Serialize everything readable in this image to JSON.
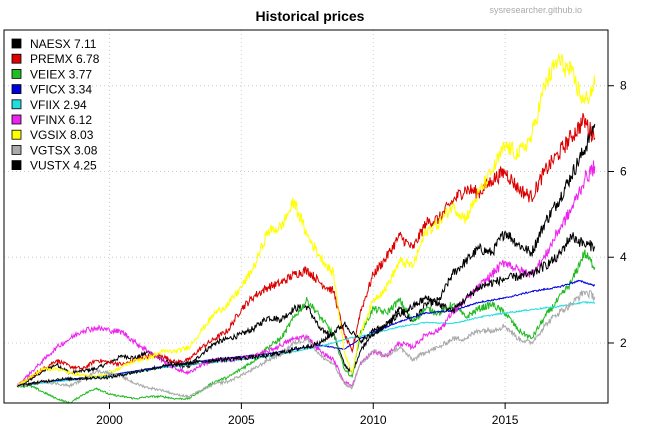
{
  "chart_data": {
    "type": "line",
    "title": "Historical prices",
    "watermark": "sysresearcher.github.io",
    "xlabel": "",
    "ylabel": "",
    "xlim": [
      1996.0,
      2018.9
    ],
    "ylim": [
      0.6,
      9.3
    ],
    "x_ticks": [
      2000,
      2005,
      2010,
      2015
    ],
    "y_ticks": [
      2,
      4,
      6,
      8
    ],
    "y_axis_side": "right",
    "grid": true,
    "legend_position": "top-left",
    "series": [
      {
        "name": "NAESX 7.11",
        "color": "#000000",
        "x": [
          1996.5,
          1997,
          1997.5,
          1998,
          1998.5,
          1999,
          1999.5,
          2000,
          2000.5,
          2001,
          2001.5,
          2002,
          2002.5,
          2003,
          2003.5,
          2004,
          2004.5,
          2005,
          2005.5,
          2006,
          2006.5,
          2007,
          2007.5,
          2008,
          2008.5,
          2008.9,
          2009.2,
          2009.5,
          2010,
          2010.5,
          2011,
          2011.5,
          2012,
          2012.5,
          2013,
          2013.5,
          2014,
          2014.5,
          2015,
          2015.5,
          2016,
          2016.5,
          2017,
          2017.5,
          2018,
          2018.4
        ],
        "y": [
          1.0,
          1.15,
          1.35,
          1.5,
          1.3,
          1.35,
          1.4,
          1.55,
          1.7,
          1.65,
          1.8,
          1.6,
          1.5,
          1.45,
          1.75,
          2.0,
          2.1,
          2.2,
          2.35,
          2.6,
          2.55,
          2.8,
          2.85,
          2.3,
          2.2,
          1.5,
          1.3,
          1.8,
          2.3,
          2.4,
          2.8,
          2.5,
          2.9,
          3.0,
          3.6,
          3.9,
          4.2,
          4.1,
          4.6,
          4.3,
          4.1,
          4.8,
          5.3,
          5.9,
          6.5,
          7.11
        ]
      },
      {
        "name": "PREMX 6.78",
        "color": "#dd0000",
        "x": [
          1996.5,
          1997,
          1997.5,
          1998,
          1998.5,
          1999,
          1999.5,
          2000,
          2000.5,
          2001,
          2001.5,
          2002,
          2002.5,
          2003,
          2003.5,
          2004,
          2004.5,
          2005,
          2005.5,
          2006,
          2006.5,
          2007,
          2007.5,
          2008,
          2008.5,
          2008.9,
          2009.2,
          2009.5,
          2010,
          2010.5,
          2011,
          2011.5,
          2012,
          2012.5,
          2013,
          2013.5,
          2014,
          2014.5,
          2015,
          2015.5,
          2016,
          2016.5,
          2017,
          2017.5,
          2018,
          2018.4
        ],
        "y": [
          1.0,
          1.2,
          1.4,
          1.6,
          1.45,
          1.4,
          1.6,
          1.55,
          1.5,
          1.6,
          1.7,
          1.7,
          1.55,
          1.6,
          1.9,
          2.1,
          2.3,
          2.8,
          3.1,
          3.3,
          3.4,
          3.6,
          3.7,
          3.4,
          3.2,
          2.2,
          1.8,
          2.7,
          3.6,
          4.0,
          4.5,
          4.2,
          4.8,
          4.9,
          5.3,
          5.6,
          5.5,
          5.8,
          6.0,
          5.6,
          5.4,
          6.0,
          6.4,
          6.8,
          7.2,
          6.78
        ]
      },
      {
        "name": "VEIEX 3.77",
        "color": "#22bb22",
        "x": [
          1996.5,
          1997,
          1997.5,
          1998,
          1998.5,
          1999,
          1999.5,
          2000,
          2000.5,
          2001,
          2001.5,
          2002,
          2002.5,
          2003,
          2003.5,
          2004,
          2004.5,
          2005,
          2005.5,
          2006,
          2006.5,
          2007,
          2007.5,
          2008,
          2008.5,
          2008.9,
          2009.2,
          2009.5,
          2010,
          2010.5,
          2011,
          2011.5,
          2012,
          2012.5,
          2013,
          2013.5,
          2014,
          2014.5,
          2015,
          2015.5,
          2016,
          2016.5,
          2017,
          2017.5,
          2018,
          2018.4
        ],
        "y": [
          1.0,
          1.0,
          0.85,
          0.7,
          0.6,
          0.8,
          0.95,
          0.8,
          0.75,
          0.7,
          0.75,
          0.75,
          0.7,
          0.7,
          0.9,
          1.1,
          1.2,
          1.4,
          1.6,
          1.9,
          2.1,
          2.6,
          3.0,
          2.6,
          2.2,
          1.4,
          1.2,
          2.2,
          2.8,
          2.7,
          3.0,
          2.5,
          2.8,
          2.7,
          2.9,
          2.6,
          2.8,
          2.9,
          2.7,
          2.3,
          2.1,
          2.6,
          3.0,
          3.4,
          4.1,
          3.77
        ]
      },
      {
        "name": "VFICX 3.34",
        "color": "#0000dd",
        "x": [
          1996.5,
          1998,
          2000,
          2002,
          2004,
          2006,
          2008,
          2008.9,
          2009.5,
          2010,
          2011,
          2012,
          2013,
          2014,
          2015,
          2016,
          2017,
          2017.8,
          2018.4
        ],
        "y": [
          1.0,
          1.12,
          1.25,
          1.45,
          1.62,
          1.75,
          1.95,
          1.85,
          2.1,
          2.25,
          2.5,
          2.7,
          2.75,
          2.95,
          3.05,
          3.2,
          3.3,
          3.45,
          3.34
        ]
      },
      {
        "name": "VFIIX 2.94",
        "color": "#22dddd",
        "x": [
          1996.5,
          1998,
          2000,
          2002,
          2004,
          2006,
          2008,
          2009,
          2010,
          2011,
          2012,
          2013,
          2014,
          2015,
          2016,
          2017,
          2018,
          2018.4
        ],
        "y": [
          1.0,
          1.1,
          1.22,
          1.42,
          1.55,
          1.68,
          1.92,
          2.1,
          2.22,
          2.38,
          2.48,
          2.45,
          2.6,
          2.7,
          2.78,
          2.85,
          2.95,
          2.94
        ]
      },
      {
        "name": "VFINX 6.12",
        "color": "#ee22ee",
        "x": [
          1996.5,
          1997,
          1997.5,
          1998,
          1998.5,
          1999,
          1999.5,
          2000,
          2000.5,
          2001,
          2001.5,
          2002,
          2002.5,
          2003,
          2003.5,
          2004,
          2004.5,
          2005,
          2005.5,
          2006,
          2006.5,
          2007,
          2007.5,
          2008,
          2008.5,
          2008.9,
          2009.2,
          2009.5,
          2010,
          2010.5,
          2011,
          2011.5,
          2012,
          2012.5,
          2013,
          2013.5,
          2014,
          2014.5,
          2015,
          2015.5,
          2016,
          2016.5,
          2017,
          2017.5,
          2018,
          2018.4
        ],
        "y": [
          1.0,
          1.3,
          1.6,
          1.9,
          2.1,
          2.3,
          2.35,
          2.3,
          2.25,
          2.0,
          1.8,
          1.6,
          1.4,
          1.3,
          1.5,
          1.6,
          1.6,
          1.65,
          1.7,
          1.8,
          1.95,
          2.1,
          2.15,
          1.8,
          1.6,
          1.1,
          1.0,
          1.5,
          1.8,
          1.7,
          2.0,
          1.9,
          2.2,
          2.3,
          2.7,
          3.0,
          3.3,
          3.6,
          3.9,
          3.7,
          3.6,
          4.0,
          4.6,
          5.1,
          5.8,
          6.12
        ]
      },
      {
        "name": "VGSIX 8.03",
        "color": "#ffff00",
        "x": [
          1996.5,
          1997,
          1997.5,
          1998,
          1998.5,
          1999,
          1999.5,
          2000,
          2000.5,
          2001,
          2001.5,
          2002,
          2002.5,
          2003,
          2003.5,
          2004,
          2004.5,
          2005,
          2005.5,
          2006,
          2006.5,
          2007,
          2007.5,
          2008,
          2008.5,
          2008.9,
          2009.2,
          2009.5,
          2010,
          2010.5,
          2011,
          2011.5,
          2012,
          2012.5,
          2013,
          2013.5,
          2014,
          2014.5,
          2015,
          2015.5,
          2016,
          2016.5,
          2017,
          2017.5,
          2018,
          2018.4
        ],
        "y": [
          1.0,
          1.2,
          1.4,
          1.4,
          1.3,
          1.25,
          1.2,
          1.3,
          1.45,
          1.6,
          1.65,
          1.8,
          1.8,
          1.9,
          2.3,
          2.7,
          2.9,
          3.3,
          3.8,
          4.6,
          4.7,
          5.3,
          4.5,
          4.0,
          3.6,
          1.8,
          1.3,
          2.2,
          3.0,
          3.3,
          3.9,
          3.8,
          4.6,
          4.8,
          5.2,
          4.9,
          5.5,
          6.0,
          6.6,
          6.4,
          6.8,
          8.0,
          8.6,
          8.3,
          7.6,
          8.03
        ]
      },
      {
        "name": "VGTSX 3.08",
        "color": "#aaaaaa",
        "x": [
          1996.5,
          1997,
          1997.5,
          1998,
          1998.5,
          1999,
          1999.5,
          2000,
          2000.5,
          2001,
          2001.5,
          2002,
          2002.5,
          2003,
          2003.5,
          2004,
          2004.5,
          2005,
          2005.5,
          2006,
          2006.5,
          2007,
          2007.5,
          2008,
          2008.5,
          2008.9,
          2009.2,
          2009.5,
          2010,
          2010.5,
          2011,
          2011.5,
          2012,
          2012.5,
          2013,
          2013.5,
          2014,
          2014.5,
          2015,
          2015.5,
          2016,
          2016.5,
          2017,
          2017.5,
          2018,
          2018.4
        ],
        "y": [
          1.0,
          1.05,
          1.1,
          1.05,
          1.0,
          1.15,
          1.35,
          1.3,
          1.2,
          1.05,
          0.95,
          0.9,
          0.8,
          0.75,
          0.9,
          1.05,
          1.1,
          1.25,
          1.4,
          1.6,
          1.75,
          2.0,
          2.1,
          1.7,
          1.5,
          1.05,
          0.95,
          1.5,
          1.8,
          1.7,
          1.9,
          1.6,
          1.8,
          1.9,
          2.1,
          2.1,
          2.3,
          2.3,
          2.4,
          2.1,
          2.0,
          2.4,
          2.7,
          2.9,
          3.2,
          3.08
        ]
      },
      {
        "name": "VUSTX 4.25",
        "color": "#000000",
        "x": [
          1996.5,
          1998,
          2000,
          2002,
          2004,
          2006,
          2008,
          2008.9,
          2009.5,
          2010,
          2011,
          2012,
          2013,
          2014,
          2015,
          2016,
          2017,
          2017.5,
          2018,
          2018.4
        ],
        "y": [
          1.0,
          1.15,
          1.2,
          1.45,
          1.6,
          1.7,
          2.0,
          2.45,
          2.05,
          2.2,
          2.65,
          3.05,
          2.75,
          3.3,
          3.5,
          3.6,
          4.0,
          4.5,
          4.3,
          4.25
        ]
      }
    ]
  }
}
